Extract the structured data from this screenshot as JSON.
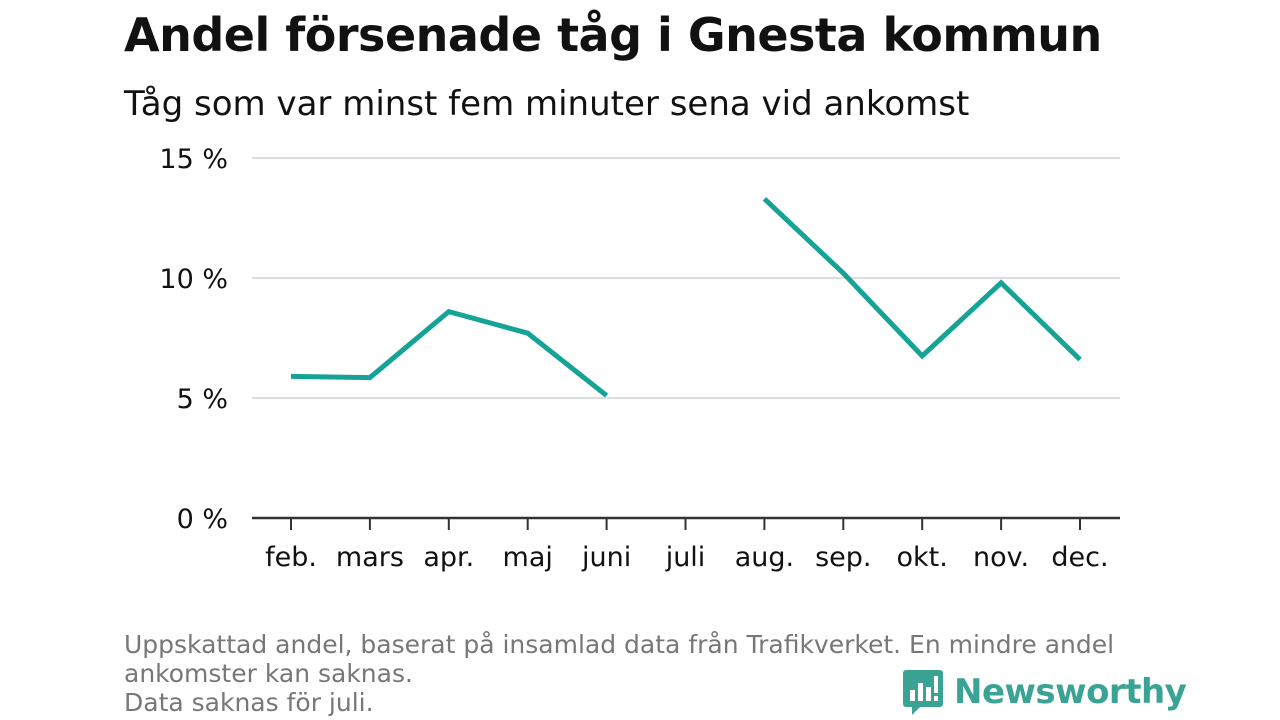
{
  "colors": {
    "line": "#14a396",
    "grid": "#dddddd",
    "axis": "#333333",
    "text": "#111111",
    "footnote": "#777777",
    "brand": "#3aa394"
  },
  "header": {
    "title": "Andel försenade tåg i Gnesta kommun",
    "subtitle": "Tåg som var minst fem minuter sena vid ankomst"
  },
  "footnote": {
    "line1": "Uppskattad andel, baserat på insamlad data från Trafikverket. En mindre andel",
    "line2": "ankomster kan saknas.",
    "line3": "Data saknas för juli."
  },
  "logo": {
    "text": "Newsworthy",
    "icon": "newsworthy-chart-bubble-icon"
  },
  "chart_data": {
    "type": "line",
    "title": "Andel försenade tåg i Gnesta kommun",
    "subtitle": "Tåg som var minst fem minuter sena vid ankomst",
    "categories": [
      "feb.",
      "mars",
      "apr.",
      "maj",
      "juni",
      "juli",
      "aug.",
      "sep.",
      "okt.",
      "nov.",
      "dec."
    ],
    "values": [
      5.9,
      5.85,
      8.6,
      7.7,
      5.1,
      null,
      13.3,
      10.2,
      6.75,
      9.8,
      6.6
    ],
    "yticks": [
      0,
      5,
      10,
      15
    ],
    "ytick_labels": [
      "0 %",
      "5 %",
      "10 %",
      "15 %"
    ],
    "ylim": [
      0,
      15
    ],
    "grid": true,
    "legend": "none"
  }
}
